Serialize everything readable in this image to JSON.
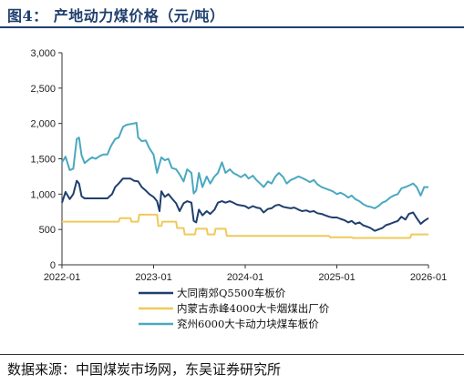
{
  "header": {
    "title": "图4： 产地动力煤价格（元/吨）",
    "source": "数据来源：中国煤炭市场网，东吴证券研究所"
  },
  "colors": {
    "title": "#1f3f6e",
    "series_1": "#1f3f6e",
    "series_2": "#f0c95a",
    "series_3": "#4aa8c0"
  },
  "chart_data": {
    "type": "line",
    "title": "",
    "xlabel": "",
    "ylabel": "",
    "x_ticks": [
      "2022-01",
      "2023-01",
      "2024-01",
      "2025-01",
      "2026-01"
    ],
    "x_range": [
      "2022-01-01",
      "2026-01-01"
    ],
    "y_ticks": [
      "0",
      "500",
      "1,000",
      "1,500",
      "2,000",
      "2,500",
      "3,000"
    ],
    "ylim": [
      0,
      3000
    ],
    "grid": false,
    "legend": "bottom-center",
    "series": [
      {
        "name": "大同南郊Q5500车板价",
        "color": "#1f3f6e",
        "points": [
          [
            "2022-01-01",
            880
          ],
          [
            "2022-01-15",
            1030
          ],
          [
            "2022-02-01",
            930
          ],
          [
            "2022-02-15",
            1000
          ],
          [
            "2022-03-01",
            1190
          ],
          [
            "2022-03-10",
            1150
          ],
          [
            "2022-03-20",
            970
          ],
          [
            "2022-04-01",
            940
          ],
          [
            "2022-05-01",
            940
          ],
          [
            "2022-06-01",
            940
          ],
          [
            "2022-07-01",
            940
          ],
          [
            "2022-07-20",
            1000
          ],
          [
            "2022-08-01",
            1100
          ],
          [
            "2022-08-15",
            1150
          ],
          [
            "2022-09-01",
            1220
          ],
          [
            "2022-10-01",
            1220
          ],
          [
            "2022-10-15",
            1190
          ],
          [
            "2022-11-01",
            1180
          ],
          [
            "2022-11-15",
            1100
          ],
          [
            "2022-12-01",
            1050
          ],
          [
            "2022-12-15",
            1000
          ],
          [
            "2023-01-01",
            960
          ],
          [
            "2023-01-15",
            900
          ],
          [
            "2023-01-25",
            760
          ],
          [
            "2023-02-01",
            1040
          ],
          [
            "2023-02-15",
            960
          ],
          [
            "2023-03-01",
            1000
          ],
          [
            "2023-03-15",
            940
          ],
          [
            "2023-04-01",
            870
          ],
          [
            "2023-04-15",
            760
          ],
          [
            "2023-05-01",
            870
          ],
          [
            "2023-05-15",
            900
          ],
          [
            "2023-06-01",
            880
          ],
          [
            "2023-06-10",
            620
          ],
          [
            "2023-06-20",
            600
          ],
          [
            "2023-07-01",
            780
          ],
          [
            "2023-07-15",
            700
          ],
          [
            "2023-08-01",
            760
          ],
          [
            "2023-08-15",
            720
          ],
          [
            "2023-09-01",
            780
          ],
          [
            "2023-09-15",
            880
          ],
          [
            "2023-10-01",
            900
          ],
          [
            "2023-10-15",
            880
          ],
          [
            "2023-11-01",
            900
          ],
          [
            "2023-11-15",
            880
          ],
          [
            "2023-12-01",
            850
          ],
          [
            "2024-01-01",
            830
          ],
          [
            "2024-01-15",
            800
          ],
          [
            "2024-02-01",
            830
          ],
          [
            "2024-02-15",
            810
          ],
          [
            "2024-03-01",
            800
          ],
          [
            "2024-03-15",
            740
          ],
          [
            "2024-04-01",
            790
          ],
          [
            "2024-04-15",
            800
          ],
          [
            "2024-05-01",
            840
          ],
          [
            "2024-05-15",
            850
          ],
          [
            "2024-06-01",
            820
          ],
          [
            "2024-06-15",
            810
          ],
          [
            "2024-07-01",
            800
          ],
          [
            "2024-07-15",
            810
          ],
          [
            "2024-08-01",
            780
          ],
          [
            "2024-08-15",
            760
          ],
          [
            "2024-09-01",
            770
          ],
          [
            "2024-09-15",
            750
          ],
          [
            "2024-10-01",
            760
          ],
          [
            "2024-10-15",
            730
          ],
          [
            "2024-11-01",
            720
          ],
          [
            "2024-11-15",
            700
          ],
          [
            "2024-12-01",
            680
          ],
          [
            "2024-12-15",
            670
          ],
          [
            "2025-01-01",
            670
          ],
          [
            "2025-01-15",
            650
          ],
          [
            "2025-02-01",
            630
          ],
          [
            "2025-02-15",
            600
          ],
          [
            "2025-03-01",
            620
          ],
          [
            "2025-03-15",
            580
          ],
          [
            "2025-04-01",
            600
          ],
          [
            "2025-04-15",
            560
          ],
          [
            "2025-05-01",
            540
          ],
          [
            "2025-05-15",
            520
          ],
          [
            "2025-06-01",
            480
          ],
          [
            "2025-06-15",
            500
          ],
          [
            "2025-07-01",
            520
          ],
          [
            "2025-07-15",
            560
          ],
          [
            "2025-08-01",
            580
          ],
          [
            "2025-08-15",
            600
          ],
          [
            "2025-09-01",
            620
          ],
          [
            "2025-09-15",
            680
          ],
          [
            "2025-10-01",
            640
          ],
          [
            "2025-10-15",
            720
          ],
          [
            "2025-11-01",
            740
          ],
          [
            "2025-11-15",
            660
          ],
          [
            "2025-12-01",
            580
          ],
          [
            "2025-12-15",
            620
          ],
          [
            "2026-01-01",
            660
          ]
        ]
      },
      {
        "name": "内蒙古赤峰4000大卡烟煤出厂价",
        "color": "#f0c95a",
        "points": [
          [
            "2022-01-01",
            610
          ],
          [
            "2022-08-15",
            610
          ],
          [
            "2022-08-20",
            660
          ],
          [
            "2022-10-01",
            660
          ],
          [
            "2022-10-05",
            610
          ],
          [
            "2022-11-01",
            610
          ],
          [
            "2022-11-05",
            710
          ],
          [
            "2023-01-15",
            710
          ],
          [
            "2023-01-20",
            550
          ],
          [
            "2023-02-01",
            550
          ],
          [
            "2023-02-05",
            610
          ],
          [
            "2023-04-01",
            610
          ],
          [
            "2023-04-05",
            520
          ],
          [
            "2023-05-01",
            520
          ],
          [
            "2023-05-05",
            430
          ],
          [
            "2023-06-15",
            430
          ],
          [
            "2023-06-20",
            510
          ],
          [
            "2023-08-01",
            510
          ],
          [
            "2023-08-05",
            430
          ],
          [
            "2023-09-01",
            430
          ],
          [
            "2023-09-05",
            510
          ],
          [
            "2023-10-15",
            510
          ],
          [
            "2023-10-20",
            410
          ],
          [
            "2024-12-01",
            410
          ],
          [
            "2024-12-05",
            390
          ],
          [
            "2025-03-01",
            390
          ],
          [
            "2025-03-05",
            380
          ],
          [
            "2025-10-20",
            380
          ],
          [
            "2025-10-25",
            430
          ],
          [
            "2026-01-01",
            430
          ]
        ]
      },
      {
        "name": "兖州6000大卡动力块煤车板价",
        "color": "#4aa8c0",
        "points": [
          [
            "2022-01-01",
            1450
          ],
          [
            "2022-01-15",
            1530
          ],
          [
            "2022-02-01",
            1340
          ],
          [
            "2022-02-15",
            1360
          ],
          [
            "2022-03-01",
            1780
          ],
          [
            "2022-03-10",
            1800
          ],
          [
            "2022-03-20",
            1550
          ],
          [
            "2022-04-01",
            1440
          ],
          [
            "2022-04-15",
            1480
          ],
          [
            "2022-05-01",
            1520
          ],
          [
            "2022-05-15",
            1500
          ],
          [
            "2022-06-01",
            1540
          ],
          [
            "2022-06-15",
            1560
          ],
          [
            "2022-07-01",
            1560
          ],
          [
            "2022-07-15",
            1680
          ],
          [
            "2022-08-01",
            1780
          ],
          [
            "2022-08-15",
            1800
          ],
          [
            "2022-09-01",
            1950
          ],
          [
            "2022-09-15",
            1980
          ],
          [
            "2022-10-01",
            1990
          ],
          [
            "2022-10-15",
            2000
          ],
          [
            "2022-10-25",
            2010
          ],
          [
            "2022-11-01",
            1800
          ],
          [
            "2022-11-15",
            1750
          ],
          [
            "2022-12-01",
            1760
          ],
          [
            "2022-12-15",
            1650
          ],
          [
            "2023-01-01",
            1560
          ],
          [
            "2023-01-15",
            1300
          ],
          [
            "2023-02-01",
            1520
          ],
          [
            "2023-02-15",
            1480
          ],
          [
            "2023-03-01",
            1500
          ],
          [
            "2023-03-15",
            1370
          ],
          [
            "2023-04-01",
            1350
          ],
          [
            "2023-04-15",
            1280
          ],
          [
            "2023-05-01",
            1180
          ],
          [
            "2023-05-15",
            1350
          ],
          [
            "2023-06-01",
            1300
          ],
          [
            "2023-06-10",
            1010
          ],
          [
            "2023-06-20",
            1050
          ],
          [
            "2023-07-01",
            1300
          ],
          [
            "2023-07-15",
            1100
          ],
          [
            "2023-08-01",
            1250
          ],
          [
            "2023-08-15",
            1150
          ],
          [
            "2023-09-01",
            1250
          ],
          [
            "2023-09-15",
            1300
          ],
          [
            "2023-10-01",
            1450
          ],
          [
            "2023-10-15",
            1300
          ],
          [
            "2023-11-01",
            1350
          ],
          [
            "2023-11-15",
            1300
          ],
          [
            "2023-12-01",
            1270
          ],
          [
            "2023-12-15",
            1240
          ],
          [
            "2024-01-01",
            1280
          ],
          [
            "2024-01-15",
            1220
          ],
          [
            "2024-02-01",
            1260
          ],
          [
            "2024-02-15",
            1200
          ],
          [
            "2024-03-01",
            1150
          ],
          [
            "2024-03-15",
            1100
          ],
          [
            "2024-04-01",
            1180
          ],
          [
            "2024-04-15",
            1150
          ],
          [
            "2024-05-01",
            1250
          ],
          [
            "2024-05-15",
            1300
          ],
          [
            "2024-06-01",
            1240
          ],
          [
            "2024-06-15",
            1150
          ],
          [
            "2024-07-01",
            1200
          ],
          [
            "2024-07-15",
            1220
          ],
          [
            "2024-08-01",
            1250
          ],
          [
            "2024-08-15",
            1230
          ],
          [
            "2024-09-01",
            1200
          ],
          [
            "2024-09-15",
            1170
          ],
          [
            "2024-10-01",
            1200
          ],
          [
            "2024-10-15",
            1140
          ],
          [
            "2024-11-01",
            1100
          ],
          [
            "2024-11-15",
            1080
          ],
          [
            "2024-12-01",
            1060
          ],
          [
            "2024-12-15",
            1040
          ],
          [
            "2025-01-01",
            1000
          ],
          [
            "2025-01-15",
            1020
          ],
          [
            "2025-02-01",
            990
          ],
          [
            "2025-02-15",
            950
          ],
          [
            "2025-03-01",
            980
          ],
          [
            "2025-03-15",
            930
          ],
          [
            "2025-04-01",
            900
          ],
          [
            "2025-04-15",
            860
          ],
          [
            "2025-05-01",
            830
          ],
          [
            "2025-05-15",
            820
          ],
          [
            "2025-06-01",
            800
          ],
          [
            "2025-06-15",
            830
          ],
          [
            "2025-07-01",
            880
          ],
          [
            "2025-07-15",
            900
          ],
          [
            "2025-08-01",
            950
          ],
          [
            "2025-08-15",
            980
          ],
          [
            "2025-09-01",
            1000
          ],
          [
            "2025-09-15",
            1080
          ],
          [
            "2025-10-01",
            1100
          ],
          [
            "2025-10-15",
            1120
          ],
          [
            "2025-11-01",
            1150
          ],
          [
            "2025-11-15",
            1100
          ],
          [
            "2025-12-01",
            980
          ],
          [
            "2025-12-15",
            1100
          ],
          [
            "2026-01-01",
            1100
          ]
        ]
      }
    ]
  }
}
